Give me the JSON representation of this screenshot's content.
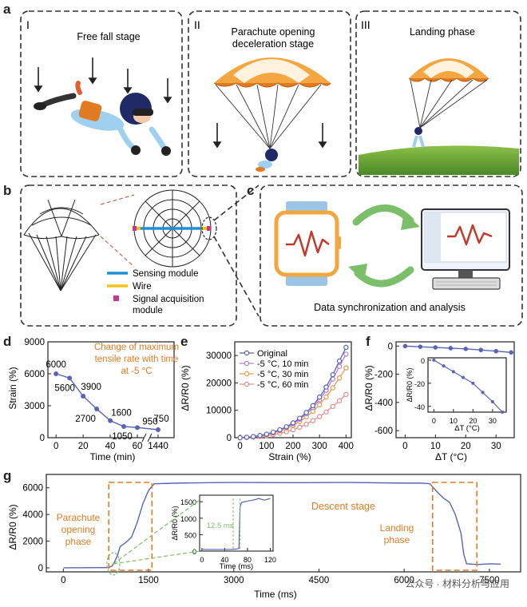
{
  "panel_a": {
    "letter": "a",
    "stages": [
      {
        "roman": "I",
        "title": "Free fall stage"
      },
      {
        "roman": "II",
        "title_line1": "Parachute opening",
        "title_line2": "deceleration stage"
      },
      {
        "roman": "III",
        "title": "Landing phase"
      }
    ]
  },
  "panel_b": {
    "letter": "b",
    "legend": [
      {
        "label": "Sensing module",
        "color": "#1f8fd6"
      },
      {
        "label": "Wire",
        "color": "#f2c21b"
      },
      {
        "label_line1": "Signal acquisition",
        "label_line2": "module",
        "color": "#c23a8c"
      }
    ]
  },
  "panel_c": {
    "letter": "c",
    "caption": "Data synchronization and analysis"
  },
  "colors": {
    "accent_orange": "#e07b22",
    "line_blue": "#5a63b8"
  },
  "chart_data": [
    {
      "panel": "d",
      "type": "line",
      "ylabel": "Strain (%)",
      "xlabel": "Time (min)",
      "annotation": [
        "Change of maximum",
        "tensile rate with time",
        "at -5 °C"
      ],
      "x": [
        0,
        10,
        20,
        30,
        40,
        50,
        60,
        1440
      ],
      "values": [
        6000,
        5600,
        3900,
        2700,
        1600,
        1050,
        950,
        750
      ],
      "point_labels": [
        "6000",
        "5600",
        "3900",
        "2700",
        "1600",
        "1050",
        "950",
        "750"
      ],
      "xticks": [
        "0",
        "20",
        "40",
        "60",
        "1440"
      ],
      "yticks": [
        "0",
        "3000",
        "6000",
        "9000"
      ],
      "ylim": [
        0,
        9000
      ],
      "axis_break": "60-1440"
    },
    {
      "panel": "e",
      "type": "line",
      "ylabel": "ΔR/R0 (%)",
      "xlabel": "Strain (%)",
      "x": [
        0,
        25,
        50,
        75,
        100,
        125,
        150,
        175,
        200,
        225,
        250,
        275,
        300,
        325,
        350,
        375,
        400
      ],
      "series": [
        {
          "name": "Original",
          "color": "#5a63b8",
          "values": [
            0,
            150,
            400,
            800,
            1300,
            2000,
            2900,
            4000,
            5400,
            7100,
            9200,
            11700,
            14800,
            18500,
            23000,
            28000,
            33000
          ]
        },
        {
          "name": "-5 °C, 10 min",
          "color": "#b07fd6",
          "values": [
            0,
            140,
            380,
            760,
            1240,
            1900,
            2750,
            3800,
            5100,
            6700,
            8700,
            11000,
            13900,
            17300,
            21400,
            26000,
            30500
          ]
        },
        {
          "name": "-5 °C, 30 min",
          "color": "#e89a4a",
          "values": [
            0,
            120,
            330,
            660,
            1100,
            1700,
            2450,
            3400,
            4500,
            5900,
            7600,
            9600,
            12000,
            14900,
            18200,
            21800,
            25500
          ]
        },
        {
          "name": "-5 °C, 60 min",
          "color": "#e08e8e",
          "values": [
            0,
            80,
            220,
            440,
            740,
            1120,
            1600,
            2200,
            2900,
            3800,
            4900,
            6200,
            7700,
            9400,
            11400,
            13500,
            15800
          ]
        }
      ],
      "xticks": [
        "0",
        "100",
        "200",
        "300",
        "400"
      ],
      "yticks": [
        "0",
        "10000",
        "20000",
        "30000"
      ],
      "ylim": [
        0,
        35000
      ]
    },
    {
      "panel": "f",
      "type": "line",
      "ylabel": "ΔR/R0 (%)",
      "xlabel": "ΔT (°C)",
      "x": [
        0,
        5,
        10,
        15,
        20,
        25,
        30,
        35
      ],
      "values": [
        0,
        -5,
        -10,
        -15,
        -20,
        -28,
        -36,
        -45
      ],
      "xticks": [
        "0",
        "10",
        "20",
        "30"
      ],
      "yticks": [
        "0",
        "-200",
        "-400",
        "-600"
      ],
      "ylim": [
        -650,
        30
      ],
      "inset": {
        "ylabel": "ΔR/R0 (%)",
        "xlabel": "ΔT (°C)",
        "xticks": [
          "0",
          "10",
          "20",
          "30"
        ],
        "yticks": [
          "0",
          "-20",
          "-40"
        ],
        "ylim": [
          -45,
          2
        ]
      }
    },
    {
      "panel": "g",
      "type": "line",
      "ylabel": "ΔR/R0 (%)",
      "xlabel": "Time (ms)",
      "x": [
        0,
        800,
        860,
        900,
        950,
        1000,
        1100,
        1200,
        1300,
        1400,
        1500,
        1600,
        2000,
        3000,
        4000,
        5000,
        6000,
        6300,
        6450,
        6600,
        6700,
        6800,
        6900,
        7000,
        7050,
        7100,
        7300,
        7500,
        7700
      ],
      "values": [
        0,
        20,
        150,
        450,
        900,
        1600,
        1900,
        2300,
        3400,
        4800,
        5800,
        6300,
        6350,
        6400,
        6380,
        6400,
        6350,
        6350,
        6300,
        5600,
        5200,
        4900,
        4000,
        2600,
        1000,
        300,
        250,
        300,
        280
      ],
      "xticks": [
        "0",
        "1500",
        "3000",
        "4500",
        "6000",
        "7500"
      ],
      "yticks": [
        "0",
        "2000",
        "4000",
        "6000"
      ],
      "ylim": [
        -300,
        7000
      ],
      "annotations": {
        "opening": [
          "Parachute",
          "opening",
          "phase"
        ],
        "descent": "Descent stage",
        "landing": [
          "Landing",
          "phase"
        ]
      },
      "inset": {
        "ylabel": "ΔR/R0 (%)",
        "xlabel": "Time (ms)",
        "xticks": [
          "0",
          "40",
          "80",
          "120"
        ],
        "yticks": [
          "0",
          "500",
          "1000",
          "1500"
        ],
        "xlim": [
          0,
          125
        ],
        "ylim": [
          0,
          1700
        ],
        "x": [
          0,
          10,
          20,
          30,
          40,
          50,
          60,
          65,
          67,
          70,
          80,
          90,
          100,
          110,
          120
        ],
        "values": [
          50,
          50,
          50,
          50,
          50,
          50,
          60,
          80,
          1350,
          1480,
          1520,
          1550,
          1600,
          1550,
          1600
        ],
        "duration_label": "12.5 ms"
      }
    }
  ],
  "watermark": "公众号 · 材料分析与应用"
}
